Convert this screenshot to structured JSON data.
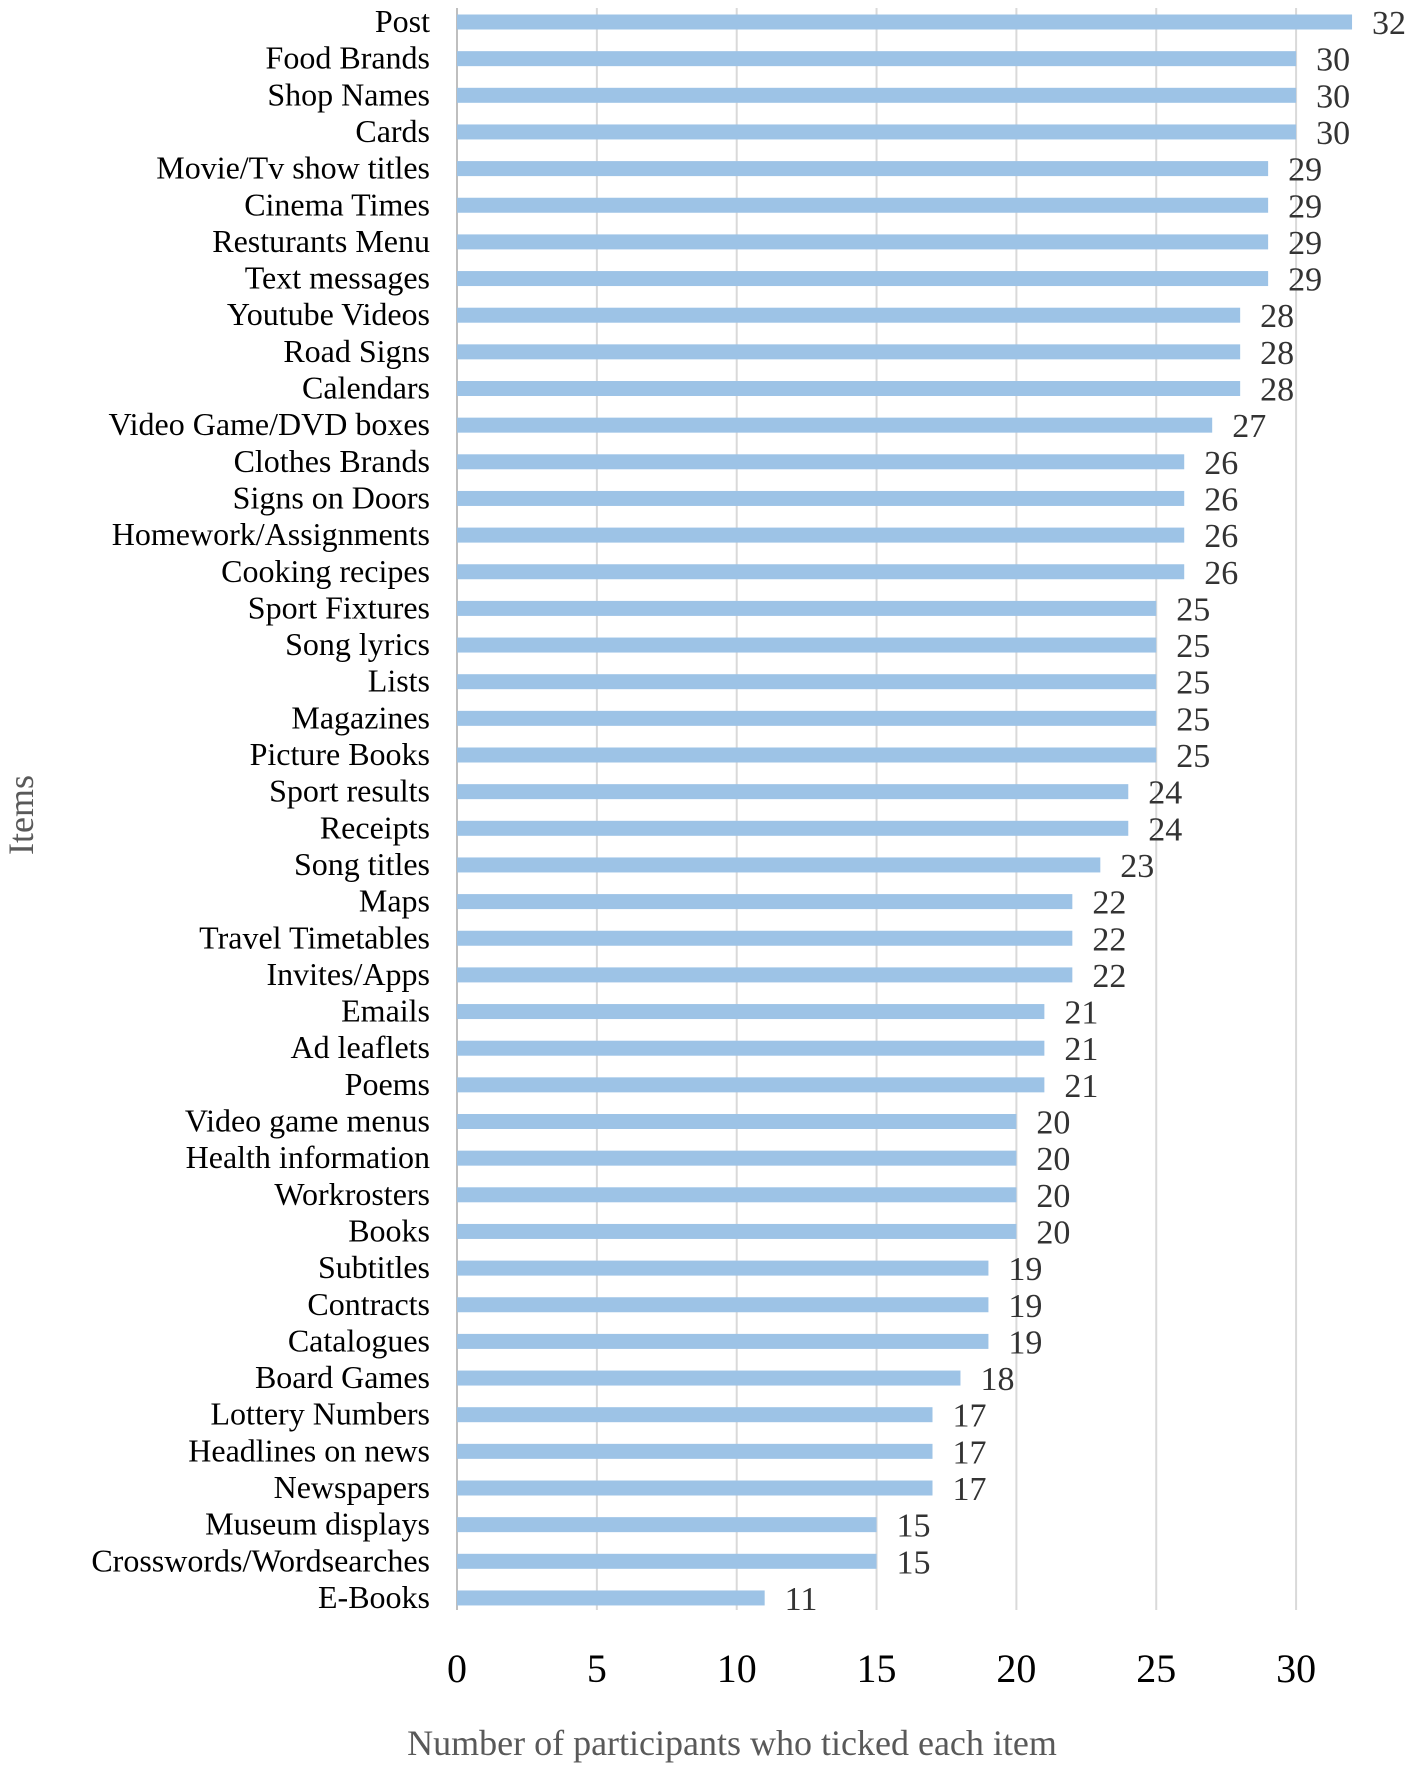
{
  "chart_data": {
    "type": "bar",
    "orientation": "horizontal",
    "categories": [
      "Post",
      "Food Brands",
      "Shop Names",
      "Cards",
      "Movie/Tv show titles",
      "Cinema Times",
      "Resturants Menu",
      "Text messages",
      "Youtube Videos",
      "Road Signs",
      "Calendars",
      "Video Game/DVD boxes",
      "Clothes Brands",
      "Signs on Doors",
      "Homework/Assignments",
      "Cooking recipes",
      "Sport Fixtures",
      "Song lyrics",
      "Lists",
      "Magazines",
      "Picture Books",
      "Sport results",
      "Receipts",
      "Song titles",
      "Maps",
      "Travel Timetables",
      "Invites/Apps",
      "Emails",
      "Ad leaflets",
      "Poems",
      "Video game menus",
      "Health information",
      "Workrosters",
      "Books",
      "Subtitles",
      "Contracts",
      "Catalogues",
      "Board Games",
      "Lottery Numbers",
      "Headlines on news",
      "Newspapers",
      "Museum displays",
      "Crosswords/Wordsearches",
      "E-Books"
    ],
    "values": [
      32,
      30,
      30,
      30,
      29,
      29,
      29,
      29,
      28,
      28,
      28,
      27,
      26,
      26,
      26,
      26,
      25,
      25,
      25,
      25,
      25,
      24,
      24,
      23,
      22,
      22,
      22,
      21,
      21,
      21,
      20,
      20,
      20,
      20,
      19,
      19,
      19,
      18,
      17,
      17,
      17,
      15,
      15,
      11
    ],
    "value_labels": [
      "32",
      "30",
      "30",
      "30",
      "29",
      "29",
      "29",
      "29",
      "28",
      "28",
      "28",
      "27",
      "26",
      "26",
      "26",
      "26",
      "25",
      "25",
      "25",
      "25",
      "25",
      "24",
      "24",
      "23",
      "22",
      "22",
      "22",
      "21",
      "21",
      "21",
      "20",
      "20",
      "20",
      "20",
      "19",
      "19",
      "19",
      "18",
      "17",
      "17",
      "17",
      "15",
      "15",
      "11"
    ],
    "xticks": [
      0,
      5,
      10,
      15,
      20,
      25,
      30
    ],
    "xtick_labels": [
      "0",
      "5",
      "10",
      "15",
      "20",
      "25",
      "30"
    ],
    "xlim": [
      0,
      32
    ],
    "xlabel": "Number of participants who ticked each item",
    "ylabel": "Items",
    "title": "",
    "grid": "vertical",
    "legend": "none",
    "colors": {
      "bar": "#9dc3e6",
      "grid": "#d9d9d9",
      "axis_title": "#595959",
      "value_label": "#333333"
    }
  }
}
